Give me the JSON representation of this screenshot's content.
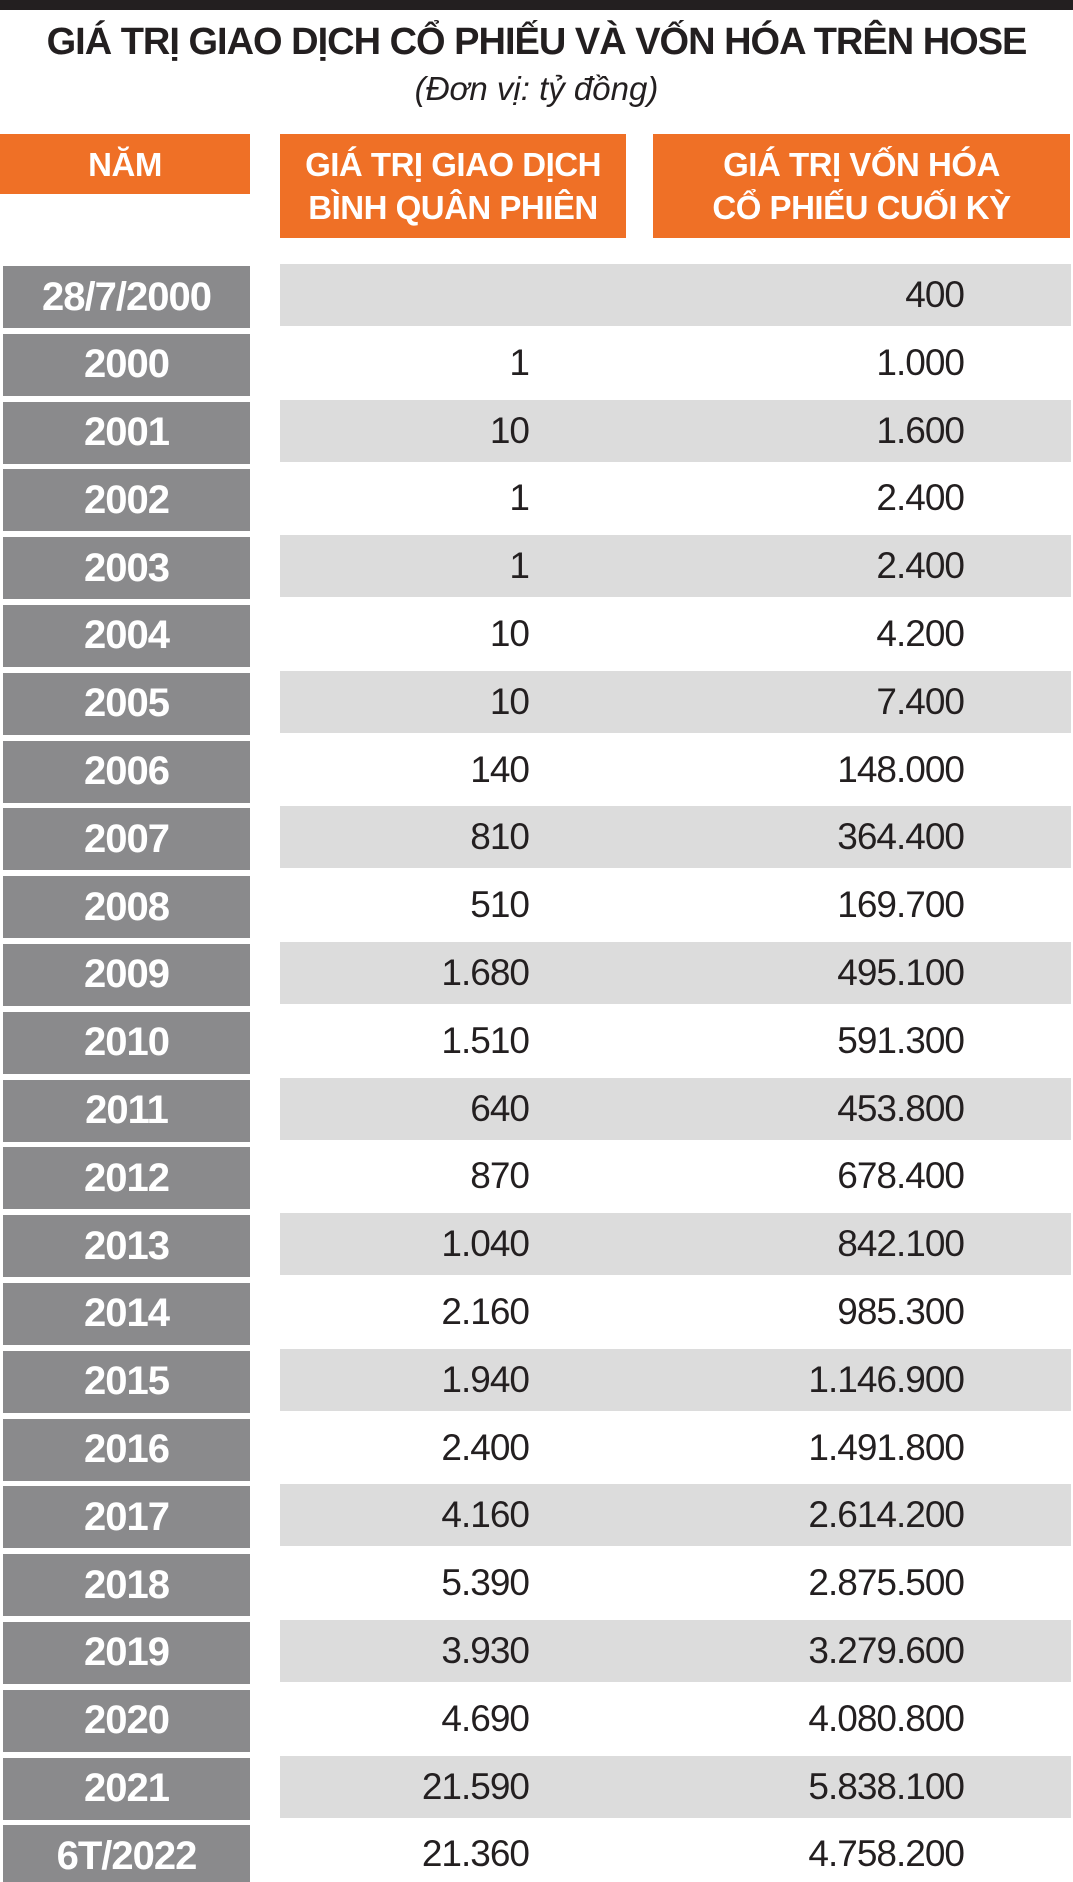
{
  "title": "GIÁ TRỊ GIAO DỊCH CỔ PHIẾU VÀ VỐN HÓA TRÊN HOSE",
  "subtitle": "(Đơn vị: tỷ đồng)",
  "columns": [
    {
      "label": "NĂM"
    },
    {
      "line1": "GIÁ TRỊ GIAO DỊCH",
      "line2": "BÌNH QUÂN PHIÊN"
    },
    {
      "line1": "GIÁ TRỊ VỐN HÓA",
      "line2": "CỔ PHIẾU CUỐI KỲ"
    }
  ],
  "rows": [
    {
      "year": "28/7/2000",
      "avg": "",
      "cap": "400"
    },
    {
      "year": "2000",
      "avg": "1",
      "cap": "1.000"
    },
    {
      "year": "2001",
      "avg": "10",
      "cap": "1.600"
    },
    {
      "year": "2002",
      "avg": "1",
      "cap": "2.400"
    },
    {
      "year": "2003",
      "avg": "1",
      "cap": "2.400"
    },
    {
      "year": "2004",
      "avg": "10",
      "cap": "4.200"
    },
    {
      "year": "2005",
      "avg": "10",
      "cap": "7.400"
    },
    {
      "year": "2006",
      "avg": "140",
      "cap": "148.000"
    },
    {
      "year": "2007",
      "avg": "810",
      "cap": "364.400"
    },
    {
      "year": "2008",
      "avg": "510",
      "cap": "169.700"
    },
    {
      "year": "2009",
      "avg": "1.680",
      "cap": "495.100"
    },
    {
      "year": "2010",
      "avg": "1.510",
      "cap": "591.300"
    },
    {
      "year": "2011",
      "avg": "640",
      "cap": "453.800"
    },
    {
      "year": "2012",
      "avg": "870",
      "cap": "678.400"
    },
    {
      "year": "2013",
      "avg": "1.040",
      "cap": "842.100"
    },
    {
      "year": "2014",
      "avg": "2.160",
      "cap": "985.300"
    },
    {
      "year": "2015",
      "avg": "1.940",
      "cap": "1.146.900"
    },
    {
      "year": "2016",
      "avg": "2.400",
      "cap": "1.491.800"
    },
    {
      "year": "2017",
      "avg": "4.160",
      "cap": "2.614.200"
    },
    {
      "year": "2018",
      "avg": "5.390",
      "cap": "2.875.500"
    },
    {
      "year": "2019",
      "avg": "3.930",
      "cap": "3.279.600"
    },
    {
      "year": "2020",
      "avg": "4.690",
      "cap": "4.080.800"
    },
    {
      "year": "2021",
      "avg": "21.590",
      "cap": "5.838.100"
    },
    {
      "year": "6T/2022",
      "avg": "21.360",
      "cap": "4.758.200"
    }
  ],
  "colors": {
    "accent_orange": "#EF7026",
    "year_pill_gray": "#8A8A8C",
    "stripe_gray": "#DCDCDC",
    "top_bar_black": "#231F20"
  },
  "chart_data": {
    "type": "table",
    "title": "GIÁ TRỊ GIAO DỊCH CỔ PHIẾU VÀ VỐN HÓA TRÊN HOSE",
    "unit_note": "(Đơn vị: tỷ đồng)",
    "columns": [
      "NĂM",
      "GIÁ TRỊ GIAO DỊCH BÌNH QUÂN PHIÊN",
      "GIÁ TRỊ VỐN HÓA CỔ PHIẾU CUỐI KỲ"
    ],
    "categories": [
      "28/7/2000",
      "2000",
      "2001",
      "2002",
      "2003",
      "2004",
      "2005",
      "2006",
      "2007",
      "2008",
      "2009",
      "2010",
      "2011",
      "2012",
      "2013",
      "2014",
      "2015",
      "2016",
      "2017",
      "2018",
      "2019",
      "2020",
      "2021",
      "6T/2022"
    ],
    "series": [
      {
        "name": "GIÁ TRỊ GIAO DỊCH BÌNH QUÂN PHIÊN",
        "values": [
          null,
          1,
          10,
          1,
          1,
          10,
          10,
          140,
          810,
          510,
          1680,
          1510,
          640,
          870,
          1040,
          2160,
          1940,
          2400,
          4160,
          5390,
          3930,
          4690,
          21590,
          21360
        ]
      },
      {
        "name": "GIÁ TRỊ VỐN HÓA CỔ PHIẾU CUỐI KỲ",
        "values": [
          400,
          1000,
          1600,
          2400,
          2400,
          4200,
          7400,
          148000,
          364400,
          169700,
          495100,
          591300,
          453800,
          678400,
          842100,
          985300,
          1146900,
          1491800,
          2614200,
          2875500,
          3279600,
          4080800,
          5838100,
          4758200
        ]
      }
    ]
  }
}
